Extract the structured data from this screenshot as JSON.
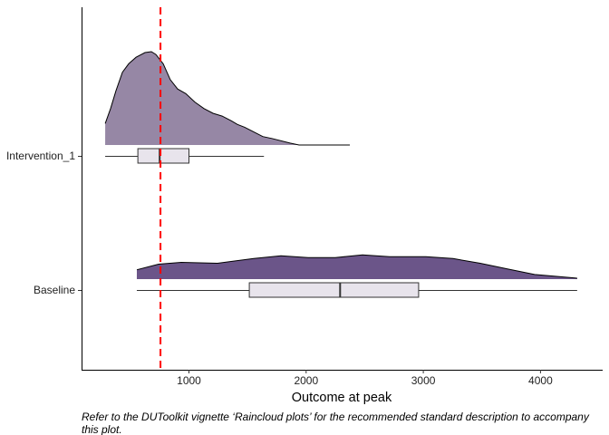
{
  "chart_data": {
    "type": "raincloud",
    "xlabel": "Outcome at peak",
    "ylabel": "",
    "xlim": [
      130,
      4550
    ],
    "x_ticks": [
      1000,
      2000,
      3000,
      4000
    ],
    "x_tick_labels": [
      "1000",
      "2000",
      "3000",
      "4000"
    ],
    "grid": false,
    "reference_line": {
      "x": 757,
      "color": "#ff0000",
      "style": "dashed"
    },
    "box_fill": "#e8e4ec",
    "groups": [
      {
        "label": "Intervention_1",
        "fill": "#9687a5",
        "density": [
          [
            285,
            0.23
          ],
          [
            331,
            0.39
          ],
          [
            377,
            0.58
          ],
          [
            432,
            0.78
          ],
          [
            486,
            0.87
          ],
          [
            548,
            0.94
          ],
          [
            625,
            0.99
          ],
          [
            679,
            1.0
          ],
          [
            718,
            0.97
          ],
          [
            780,
            0.87
          ],
          [
            841,
            0.7
          ],
          [
            903,
            0.6
          ],
          [
            973,
            0.55
          ],
          [
            1050,
            0.46
          ],
          [
            1128,
            0.39
          ],
          [
            1205,
            0.34
          ],
          [
            1283,
            0.31
          ],
          [
            1360,
            0.26
          ],
          [
            1414,
            0.22
          ],
          [
            1476,
            0.19
          ],
          [
            1553,
            0.14
          ],
          [
            1630,
            0.09
          ],
          [
            1708,
            0.07
          ],
          [
            1862,
            0.02
          ],
          [
            1940,
            0.0
          ],
          [
            2373,
            0.0
          ]
        ],
        "box": {
          "whisker_low": 285,
          "q1": 564,
          "median": 750,
          "q3": 1000,
          "whisker_high": 1640
        }
      },
      {
        "label": "Baseline",
        "fill": "#6b5589",
        "density": [
          [
            555,
            0.1
          ],
          [
            741,
            0.16
          ],
          [
            934,
            0.18
          ],
          [
            1244,
            0.17
          ],
          [
            1553,
            0.22
          ],
          [
            1785,
            0.25
          ],
          [
            2017,
            0.23
          ],
          [
            2249,
            0.23
          ],
          [
            2481,
            0.26
          ],
          [
            2713,
            0.24
          ],
          [
            3022,
            0.24
          ],
          [
            3254,
            0.22
          ],
          [
            3486,
            0.17
          ],
          [
            3718,
            0.11
          ],
          [
            3950,
            0.05
          ],
          [
            4313,
            0.01
          ]
        ],
        "box": {
          "whisker_low": 555,
          "q1": 1515,
          "median": 2290,
          "q3": 2960,
          "whisker_high": 4313
        }
      }
    ]
  },
  "caption": "Refer to the DUToolkit vignette ‘Raincloud plots’ for the recommended standard description to accompany this plot."
}
